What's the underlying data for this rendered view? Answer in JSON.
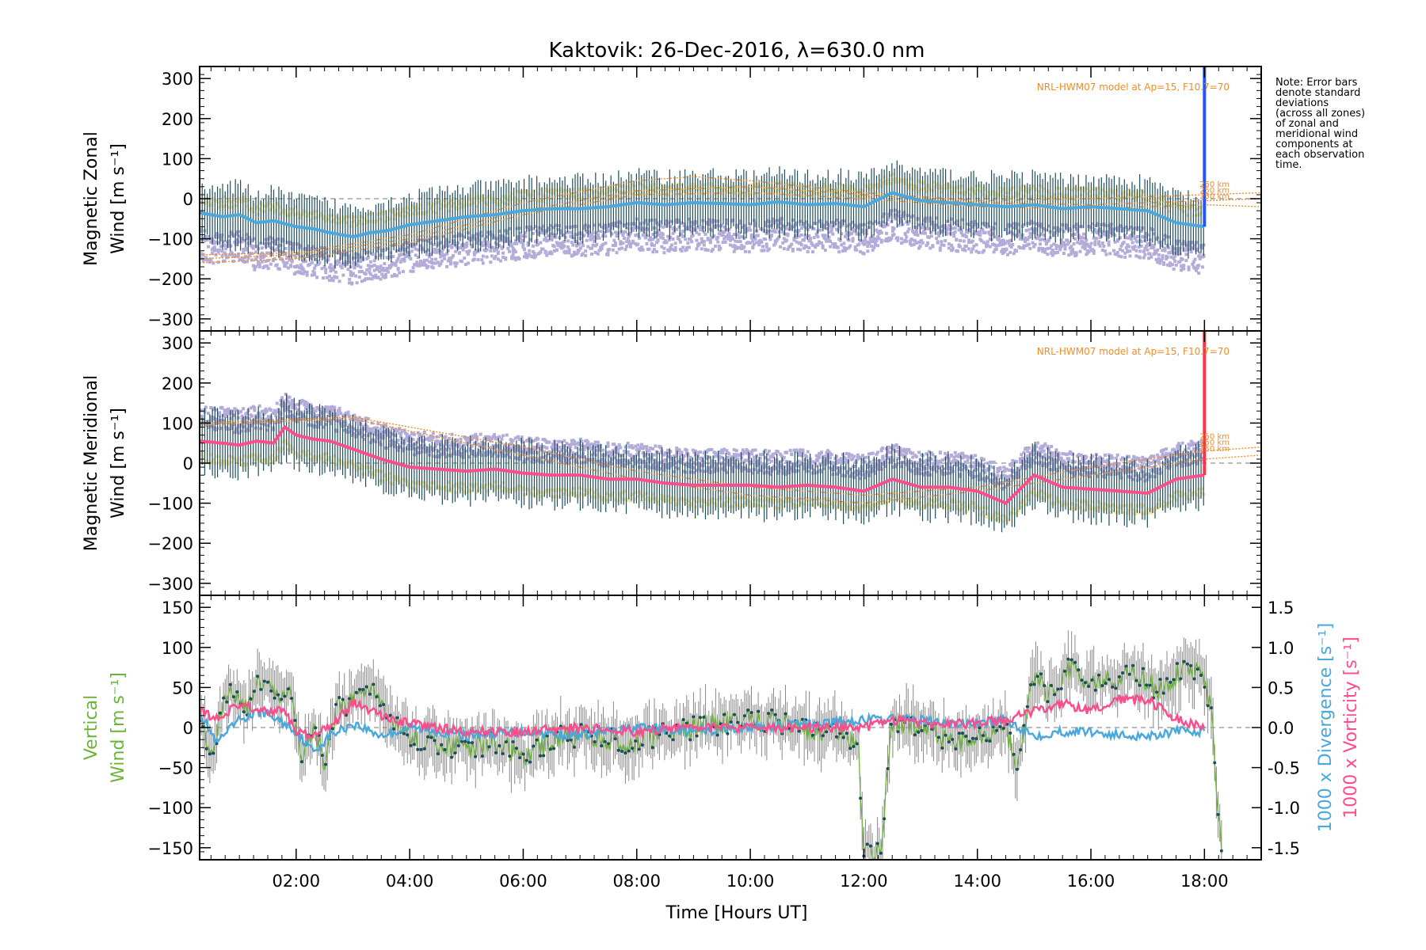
{
  "title": "Kaktovik: 26-Dec-2016, λ=630.0 nm",
  "xlabel": "Time [Hours UT]",
  "note_lines": [
    "Note: Error bars",
    "denote standard",
    "deviations",
    "(across all zones)",
    "of zonal and",
    "meridional wind",
    "components at",
    "each observation",
    "time."
  ],
  "colors": {
    "zonal": "#4aa8dc",
    "zonal_light": "#a9d8ee",
    "zonal_bar": "#2255ff",
    "meridional": "#ff4d8c",
    "meridional_bar": "#ff3344",
    "model": "#f28c28",
    "scatter": "#b4acd8",
    "scatter_yellow": "#f2e6a8",
    "errbar": "#1f4d5c",
    "vertical": "#6bb33a",
    "divergence": "#4aa8dc",
    "vorticity": "#ff4d8c"
  },
  "chart_data": [
    {
      "type": "line",
      "panel": "zonal",
      "ylabel_line1": "Magnetic Zonal",
      "ylabel_line2": "Wind [m s⁻¹]",
      "xlim": [
        0.3,
        19.0
      ],
      "ylim": [
        -330,
        330
      ],
      "yticks": [
        -300,
        -200,
        -100,
        0,
        100,
        200,
        300
      ],
      "xticks": [
        2,
        4,
        6,
        8,
        10,
        12,
        14,
        16,
        18
      ],
      "model_label": "NRL-HWM07 model at Ap=15, F10.7=70",
      "model_alt_labels": [
        "250 km",
        "250 km",
        "250 km"
      ],
      "series": [
        {
          "role": "mean",
          "x": [
            0.3,
            0.7,
            1.0,
            1.3,
            1.6,
            2.0,
            2.3,
            2.6,
            3.0,
            3.3,
            3.6,
            4.0,
            4.5,
            5.0,
            5.5,
            6.0,
            6.5,
            7.0,
            7.5,
            8.0,
            8.5,
            9.0,
            9.5,
            10.0,
            10.5,
            11.0,
            11.5,
            12.0,
            12.5,
            13.0,
            13.5,
            14.0,
            14.5,
            15.0,
            15.5,
            16.0,
            16.5,
            17.0,
            17.5,
            18.0
          ],
          "y": [
            -35,
            -45,
            -40,
            -60,
            -55,
            -70,
            -75,
            -85,
            -95,
            -85,
            -80,
            -65,
            -55,
            -45,
            -40,
            -30,
            -25,
            -25,
            -20,
            -10,
            -15,
            -10,
            -12,
            -15,
            -8,
            -15,
            -12,
            -20,
            15,
            -5,
            -10,
            -15,
            -20,
            -15,
            -25,
            -20,
            -25,
            -30,
            -60,
            -70
          ]
        },
        {
          "role": "model",
          "x": [
            0.3,
            2,
            4,
            6,
            8,
            9,
            10,
            12,
            14,
            16,
            18,
            19
          ],
          "y": [
            -140,
            -135,
            -90,
            -10,
            45,
            55,
            45,
            15,
            -5,
            0,
            10,
            15
          ]
        },
        {
          "role": "model",
          "x": [
            0.3,
            2,
            4,
            6,
            8,
            10,
            12,
            14,
            16,
            18,
            19
          ],
          "y": [
            -150,
            -140,
            -100,
            -30,
            20,
            30,
            10,
            -10,
            -15,
            -5,
            0
          ]
        },
        {
          "role": "model",
          "x": [
            0.3,
            2,
            4,
            6,
            8,
            10,
            12,
            14,
            16,
            18,
            19
          ],
          "y": [
            -160,
            -150,
            -110,
            -40,
            10,
            15,
            0,
            -20,
            -25,
            -15,
            -20
          ]
        }
      ]
    },
    {
      "type": "line",
      "panel": "meridional",
      "ylabel_line1": "Magnetic Meridional",
      "ylabel_line2": "Wind [m s⁻¹]",
      "xlim": [
        0.3,
        19.0
      ],
      "ylim": [
        -330,
        330
      ],
      "yticks": [
        -300,
        -200,
        -100,
        0,
        100,
        200,
        300
      ],
      "xticks": [
        2,
        4,
        6,
        8,
        10,
        12,
        14,
        16,
        18
      ],
      "model_label": "NRL-HWM07 model at Ap=15, F10.7=70",
      "model_alt_labels": [
        "250 km",
        "250 km",
        "250 km"
      ],
      "series": [
        {
          "role": "mean",
          "x": [
            0.3,
            0.7,
            1.0,
            1.3,
            1.6,
            1.8,
            2.0,
            2.3,
            2.6,
            3.0,
            3.5,
            4.0,
            4.5,
            5.0,
            5.5,
            6.0,
            6.5,
            7.0,
            7.5,
            8.0,
            8.5,
            9.0,
            9.5,
            10.0,
            10.5,
            11.0,
            11.5,
            12.0,
            12.5,
            13.0,
            13.5,
            14.0,
            14.5,
            15.0,
            15.5,
            16.0,
            16.5,
            17.0,
            17.5,
            18.0
          ],
          "y": [
            55,
            50,
            45,
            55,
            50,
            90,
            70,
            60,
            55,
            35,
            10,
            -10,
            -15,
            -20,
            -15,
            -25,
            -30,
            -30,
            -40,
            -40,
            -50,
            -55,
            -55,
            -55,
            -60,
            -55,
            -60,
            -70,
            -40,
            -60,
            -60,
            -70,
            -100,
            -30,
            -60,
            -65,
            -70,
            -75,
            -40,
            -30
          ]
        },
        {
          "role": "model",
          "x": [
            0.3,
            2,
            3,
            4,
            6,
            8,
            10,
            12,
            14,
            16,
            18,
            19
          ],
          "y": [
            100,
            110,
            115,
            90,
            40,
            -20,
            -60,
            -80,
            -60,
            -10,
            30,
            40
          ]
        },
        {
          "role": "model",
          "x": [
            0.3,
            2,
            3,
            4,
            6,
            8,
            10,
            12,
            14,
            16,
            18,
            19
          ],
          "y": [
            95,
            105,
            110,
            80,
            20,
            -40,
            -80,
            -100,
            -70,
            -30,
            10,
            20
          ]
        }
      ]
    },
    {
      "type": "line",
      "panel": "vertical",
      "ylabel_line1": "Vertical",
      "ylabel_line2": "Wind [m s⁻¹]",
      "y2label_a": "1000 x Divergence [s⁻¹]",
      "y2label_b": "1000 x Vorticity [s⁻¹]",
      "xlim": [
        0.3,
        19.0
      ],
      "ylim": [
        -165,
        165
      ],
      "yticks": [
        -150,
        -100,
        -50,
        0,
        50,
        100,
        150
      ],
      "y2lim": [
        -1.65,
        1.65
      ],
      "y2ticks": [
        -1.5,
        -1.0,
        -0.5,
        0.0,
        0.5,
        1.0,
        1.5
      ],
      "y2tick_labels": [
        "-1.5",
        "-1.0",
        "-0.5",
        "0.0",
        "0.5",
        "1.0",
        "1.5"
      ],
      "xticks": [
        2,
        4,
        6,
        8,
        10,
        12,
        14,
        16,
        18
      ],
      "xtick_labels": [
        "02:00",
        "04:00",
        "06:00",
        "08:00",
        "10:00",
        "12:00",
        "14:00",
        "16:00",
        "18:00"
      ],
      "series": [
        {
          "role": "vertical",
          "x": [
            0.3,
            0.5,
            0.7,
            0.9,
            1.1,
            1.3,
            1.5,
            1.7,
            1.9,
            2.1,
            2.3,
            2.5,
            2.7,
            2.9,
            3.1,
            3.3,
            3.5,
            3.8,
            4.0,
            4.5,
            5.0,
            5.5,
            6.0,
            6.5,
            7.0,
            7.5,
            8.0,
            8.5,
            9.0,
            9.5,
            10.0,
            10.5,
            11.0,
            11.5,
            11.9,
            12.0,
            12.1,
            12.3,
            12.5,
            12.8,
            13.0,
            13.5,
            14.0,
            14.5,
            14.7,
            15.0,
            15.3,
            15.6,
            16.0,
            16.4,
            16.8,
            17.2,
            17.6,
            17.9,
            18.1,
            18.3
          ],
          "y": [
            20,
            -40,
            30,
            45,
            20,
            55,
            60,
            35,
            40,
            -30,
            0,
            -45,
            20,
            30,
            45,
            55,
            25,
            0,
            -10,
            -20,
            -25,
            -20,
            -35,
            -15,
            -10,
            -15,
            -20,
            -5,
            0,
            5,
            15,
            5,
            -5,
            0,
            -20,
            -160,
            -160,
            -150,
            5,
            5,
            0,
            -20,
            -10,
            -5,
            -45,
            60,
            40,
            75,
            55,
            60,
            70,
            45,
            70,
            70,
            35,
            -160
          ]
        },
        {
          "role": "divergence",
          "x": [
            0.3,
            0.6,
            1.0,
            1.4,
            1.8,
            2.0,
            2.3,
            2.6,
            3.0,
            3.5,
            4.0,
            5.0,
            6.0,
            7.0,
            8.0,
            9.0,
            10.0,
            11.0,
            12.0,
            12.5,
            13.0,
            13.5,
            14.0,
            14.5,
            15.0,
            15.5,
            16.0,
            16.5,
            17.0,
            17.5,
            18.0
          ],
          "y": [
            0.2,
            -0.2,
            0.1,
            0.2,
            0.05,
            -0.05,
            -0.3,
            -0.1,
            0.05,
            -0.1,
            0.0,
            -0.1,
            -0.05,
            -0.1,
            0.0,
            -0.05,
            0.0,
            0.05,
            0.1,
            0.1,
            0.1,
            0.05,
            0.05,
            0.1,
            -0.1,
            -0.05,
            -0.05,
            -0.1,
            -0.1,
            -0.05,
            -0.05
          ]
        },
        {
          "role": "vorticity",
          "x": [
            0.3,
            0.6,
            1.0,
            1.4,
            1.8,
            2.0,
            2.3,
            2.6,
            3.0,
            3.5,
            4.0,
            5.0,
            6.0,
            7.0,
            8.0,
            9.0,
            10.0,
            11.0,
            12.0,
            12.5,
            13.0,
            13.5,
            14.0,
            14.5,
            15.0,
            15.5,
            16.0,
            16.5,
            17.0,
            17.5,
            18.0
          ],
          "y": [
            0.2,
            0.1,
            0.3,
            0.2,
            0.2,
            -0.05,
            -0.1,
            0.0,
            0.3,
            0.15,
            0.05,
            -0.05,
            -0.05,
            0.0,
            -0.05,
            0.0,
            0.0,
            0.0,
            0.0,
            0.1,
            0.05,
            0.05,
            0.05,
            0.1,
            0.2,
            0.3,
            0.2,
            0.35,
            0.35,
            0.1,
            0.0
          ]
        }
      ]
    }
  ]
}
